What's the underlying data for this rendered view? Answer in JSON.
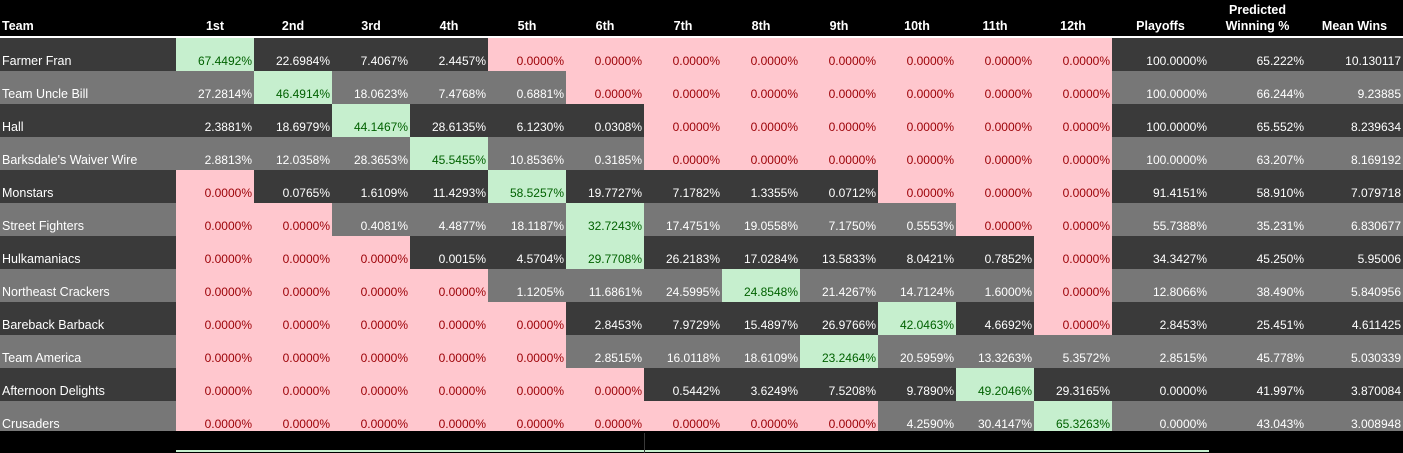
{
  "headers": {
    "team": "Team",
    "places": [
      "1st",
      "2nd",
      "3rd",
      "4th",
      "5th",
      "6th",
      "7th",
      "8th",
      "9th",
      "10th",
      "11th",
      "12th"
    ],
    "playoffs": "Playoffs",
    "winpct": [
      "Predicted",
      "Winning %"
    ],
    "meanwins": "Mean Wins"
  },
  "colors": {
    "dark_row": "#3a3a3a",
    "light_row": "#777777",
    "bad_fill": "#ffc7ce",
    "bad_text": "#9c0006",
    "good_fill": "#c6efce",
    "good_text": "#006100"
  },
  "rows": [
    {
      "team": "Farmer Fran",
      "places": [
        "67.4492%",
        "22.6984%",
        "7.4067%",
        "2.4457%",
        "0.0000%",
        "0.0000%",
        "0.0000%",
        "0.0000%",
        "0.0000%",
        "0.0000%",
        "0.0000%",
        "0.0000%"
      ],
      "playoffs": "100.0000%",
      "winpct": "65.222%",
      "meanwins": "10.130117"
    },
    {
      "team": "Team Uncle Bill",
      "places": [
        "27.2814%",
        "46.4914%",
        "18.0623%",
        "7.4768%",
        "0.6881%",
        "0.0000%",
        "0.0000%",
        "0.0000%",
        "0.0000%",
        "0.0000%",
        "0.0000%",
        "0.0000%"
      ],
      "playoffs": "100.0000%",
      "winpct": "66.244%",
      "meanwins": "9.23885"
    },
    {
      "team": "Hall",
      "places": [
        "2.3881%",
        "18.6979%",
        "44.1467%",
        "28.6135%",
        "6.1230%",
        "0.0308%",
        "0.0000%",
        "0.0000%",
        "0.0000%",
        "0.0000%",
        "0.0000%",
        "0.0000%"
      ],
      "playoffs": "100.0000%",
      "winpct": "65.552%",
      "meanwins": "8.239634"
    },
    {
      "team": "Barksdale's Waiver Wire",
      "places": [
        "2.8813%",
        "12.0358%",
        "28.3653%",
        "45.5455%",
        "10.8536%",
        "0.3185%",
        "0.0000%",
        "0.0000%",
        "0.0000%",
        "0.0000%",
        "0.0000%",
        "0.0000%"
      ],
      "playoffs": "100.0000%",
      "winpct": "63.207%",
      "meanwins": "8.169192"
    },
    {
      "team": "Monstars",
      "places": [
        "0.0000%",
        "0.0765%",
        "1.6109%",
        "11.4293%",
        "58.5257%",
        "19.7727%",
        "7.1782%",
        "1.3355%",
        "0.0712%",
        "0.0000%",
        "0.0000%",
        "0.0000%"
      ],
      "playoffs": "91.4151%",
      "winpct": "58.910%",
      "meanwins": "7.079718"
    },
    {
      "team": "Street Fighters",
      "places": [
        "0.0000%",
        "0.0000%",
        "0.4081%",
        "4.4877%",
        "18.1187%",
        "32.7243%",
        "17.4751%",
        "19.0558%",
        "7.1750%",
        "0.5553%",
        "0.0000%",
        "0.0000%"
      ],
      "playoffs": "55.7388%",
      "winpct": "35.231%",
      "meanwins": "6.830677"
    },
    {
      "team": "Hulkamaniacs",
      "places": [
        "0.0000%",
        "0.0000%",
        "0.0000%",
        "0.0015%",
        "4.5704%",
        "29.7708%",
        "26.2183%",
        "17.0284%",
        "13.5833%",
        "8.0421%",
        "0.7852%",
        "0.0000%"
      ],
      "playoffs": "34.3427%",
      "winpct": "45.250%",
      "meanwins": "5.95006"
    },
    {
      "team": "Northeast Crackers",
      "places": [
        "0.0000%",
        "0.0000%",
        "0.0000%",
        "0.0000%",
        "1.1205%",
        "11.6861%",
        "24.5995%",
        "24.8548%",
        "21.4267%",
        "14.7124%",
        "1.6000%",
        "0.0000%"
      ],
      "playoffs": "12.8066%",
      "winpct": "38.490%",
      "meanwins": "5.840956"
    },
    {
      "team": "Bareback Barback",
      "places": [
        "0.0000%",
        "0.0000%",
        "0.0000%",
        "0.0000%",
        "0.0000%",
        "2.8453%",
        "7.9729%",
        "15.4897%",
        "26.9766%",
        "42.0463%",
        "4.6692%",
        "0.0000%"
      ],
      "playoffs": "2.8453%",
      "winpct": "25.451%",
      "meanwins": "4.611425"
    },
    {
      "team": "Team America",
      "places": [
        "0.0000%",
        "0.0000%",
        "0.0000%",
        "0.0000%",
        "0.0000%",
        "2.8515%",
        "16.0118%",
        "18.6109%",
        "23.2464%",
        "20.5959%",
        "13.3263%",
        "5.3572%"
      ],
      "playoffs": "2.8515%",
      "winpct": "45.778%",
      "meanwins": "5.030339"
    },
    {
      "team": "Afternoon Delights",
      "places": [
        "0.0000%",
        "0.0000%",
        "0.0000%",
        "0.0000%",
        "0.0000%",
        "0.0000%",
        "0.5442%",
        "3.6249%",
        "7.5208%",
        "9.7890%",
        "49.2046%",
        "29.3165%"
      ],
      "playoffs": "0.0000%",
      "winpct": "41.997%",
      "meanwins": "3.870084"
    },
    {
      "team": "Crusaders",
      "places": [
        "0.0000%",
        "0.0000%",
        "0.0000%",
        "0.0000%",
        "0.0000%",
        "0.0000%",
        "0.0000%",
        "0.0000%",
        "0.0000%",
        "4.2590%",
        "30.4147%",
        "65.3263%"
      ],
      "playoffs": "0.0000%",
      "winpct": "43.043%",
      "meanwins": "3.008948"
    }
  ]
}
